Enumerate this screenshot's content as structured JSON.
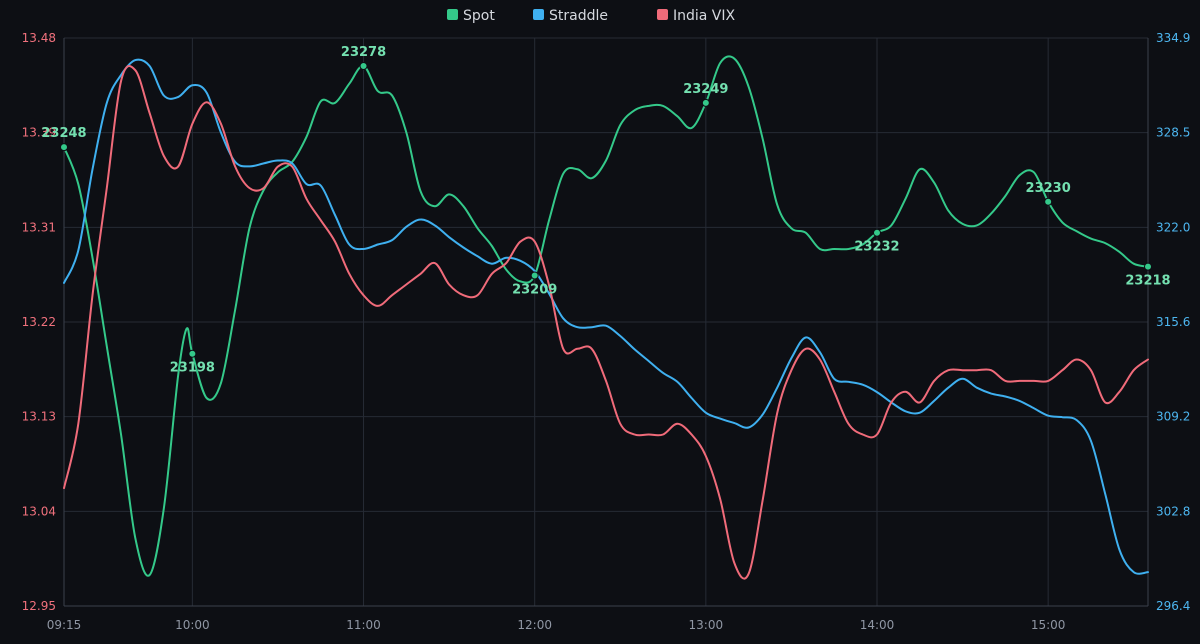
{
  "chart_data": {
    "type": "line",
    "legend": {
      "position": "top-center"
    },
    "grid": true,
    "colors": {
      "spot": "#34c98a",
      "straddle": "#3fb0f0",
      "vix": "#f06b7a",
      "background": "#0d0f14",
      "grid": "#262b35"
    },
    "x_ticks": [
      "09:15",
      "10:00",
      "11:00",
      "12:00",
      "13:00",
      "14:00",
      "15:00"
    ],
    "x_range": [
      "09:15",
      "15:35"
    ],
    "y_left": {
      "range": [
        12.95,
        13.48
      ],
      "ticks": [
        "12.95",
        "13.04",
        "13.13",
        "13.22",
        "13.31",
        "13.39",
        "13.48"
      ]
    },
    "y_right": {
      "range": [
        296.4,
        334.9
      ],
      "ticks": [
        "296.4",
        "302.8",
        "309.2",
        "315.6",
        "322.0",
        "328.5",
        "334.9"
      ]
    },
    "series": [
      {
        "name": "Spot",
        "axis": "right",
        "color": "#34c98a",
        "points": [
          [
            "09:15",
            327.5
          ],
          [
            "09:20",
            325.0
          ],
          [
            "09:25",
            320.0
          ],
          [
            "09:30",
            314.0
          ],
          [
            "09:35",
            308.0
          ],
          [
            "09:40",
            301.0
          ],
          [
            "09:45",
            298.5
          ],
          [
            "09:50",
            303.0
          ],
          [
            "09:55",
            312.0
          ],
          [
            "09:58",
            315.2
          ],
          [
            "10:00",
            313.5
          ],
          [
            "10:05",
            310.5
          ],
          [
            "10:10",
            311.5
          ],
          [
            "10:15",
            316.5
          ],
          [
            "10:20",
            322.0
          ],
          [
            "10:25",
            324.6
          ],
          [
            "10:30",
            325.8
          ],
          [
            "10:35",
            326.5
          ],
          [
            "10:40",
            328.2
          ],
          [
            "10:45",
            330.6
          ],
          [
            "10:50",
            330.5
          ],
          [
            "10:55",
            331.8
          ],
          [
            "11:00",
            333.0
          ],
          [
            "11:05",
            331.3
          ],
          [
            "11:10",
            331.0
          ],
          [
            "11:15",
            328.5
          ],
          [
            "11:20",
            324.5
          ],
          [
            "11:25",
            323.5
          ],
          [
            "11:30",
            324.3
          ],
          [
            "11:35",
            323.5
          ],
          [
            "11:40",
            322.0
          ],
          [
            "11:45",
            320.8
          ],
          [
            "11:50",
            319.2
          ],
          [
            "11:55",
            318.4
          ],
          [
            "12:00",
            318.8
          ],
          [
            "12:05",
            322.5
          ],
          [
            "12:10",
            325.7
          ],
          [
            "12:15",
            326.0
          ],
          [
            "12:20",
            325.4
          ],
          [
            "12:25",
            326.6
          ],
          [
            "12:30",
            329.0
          ],
          [
            "12:35",
            330.0
          ],
          [
            "12:40",
            330.3
          ],
          [
            "12:45",
            330.3
          ],
          [
            "12:50",
            329.6
          ],
          [
            "12:55",
            328.8
          ],
          [
            "13:00",
            330.5
          ],
          [
            "13:05",
            333.2
          ],
          [
            "13:10",
            333.5
          ],
          [
            "13:15",
            331.6
          ],
          [
            "13:20",
            328.0
          ],
          [
            "13:25",
            323.6
          ],
          [
            "13:30",
            322.0
          ],
          [
            "13:35",
            321.7
          ],
          [
            "13:40",
            320.6
          ],
          [
            "13:45",
            320.6
          ],
          [
            "13:50",
            320.6
          ],
          [
            "13:55",
            320.9
          ],
          [
            "14:00",
            321.7
          ],
          [
            "14:05",
            322.2
          ],
          [
            "14:10",
            324.0
          ],
          [
            "14:15",
            326.0
          ],
          [
            "14:20",
            325.1
          ],
          [
            "14:25",
            323.2
          ],
          [
            "14:30",
            322.3
          ],
          [
            "14:35",
            322.2
          ],
          [
            "14:40",
            323.0
          ],
          [
            "14:45",
            324.2
          ],
          [
            "14:50",
            325.6
          ],
          [
            "14:55",
            325.8
          ],
          [
            "15:00",
            323.8
          ],
          [
            "15:05",
            322.4
          ],
          [
            "15:10",
            321.8
          ],
          [
            "15:15",
            321.3
          ],
          [
            "15:20",
            321.0
          ],
          [
            "15:25",
            320.4
          ],
          [
            "15:30",
            319.6
          ],
          [
            "15:35",
            319.4
          ]
        ],
        "labels": [
          {
            "x": "09:15",
            "text": "23248",
            "pos": "above"
          },
          {
            "x": "10:00",
            "text": "23198",
            "pos": "below"
          },
          {
            "x": "11:00",
            "text": "23278",
            "pos": "above"
          },
          {
            "x": "12:00",
            "text": "23209",
            "pos": "below"
          },
          {
            "x": "13:00",
            "text": "23249",
            "pos": "above"
          },
          {
            "x": "14:00",
            "text": "23232",
            "pos": "below"
          },
          {
            "x": "15:00",
            "text": "23230",
            "pos": "above"
          },
          {
            "x": "15:35",
            "text": "23218",
            "pos": "below"
          }
        ]
      },
      {
        "name": "Straddle",
        "axis": "right",
        "color": "#3fb0f0",
        "points": [
          [
            "09:15",
            318.3
          ],
          [
            "09:20",
            320.5
          ],
          [
            "09:25",
            326.0
          ],
          [
            "09:30",
            330.5
          ],
          [
            "09:35",
            332.4
          ],
          [
            "09:40",
            333.4
          ],
          [
            "09:45",
            333.0
          ],
          [
            "09:50",
            331.0
          ],
          [
            "09:55",
            330.9
          ],
          [
            "10:00",
            331.7
          ],
          [
            "10:05",
            331.2
          ],
          [
            "10:10",
            328.5
          ],
          [
            "10:15",
            326.5
          ],
          [
            "10:20",
            326.2
          ],
          [
            "10:25",
            326.4
          ],
          [
            "10:30",
            326.6
          ],
          [
            "10:35",
            326.4
          ],
          [
            "10:40",
            325.0
          ],
          [
            "10:45",
            324.9
          ],
          [
            "10:50",
            322.9
          ],
          [
            "10:55",
            320.9
          ],
          [
            "11:00",
            320.6
          ],
          [
            "11:05",
            320.9
          ],
          [
            "11:10",
            321.2
          ],
          [
            "11:15",
            322.1
          ],
          [
            "11:20",
            322.6
          ],
          [
            "11:25",
            322.2
          ],
          [
            "11:30",
            321.4
          ],
          [
            "11:35",
            320.7
          ],
          [
            "11:40",
            320.1
          ],
          [
            "11:45",
            319.6
          ],
          [
            "11:50",
            320.0
          ],
          [
            "11:55",
            319.8
          ],
          [
            "12:00",
            319.1
          ],
          [
            "12:05",
            317.6
          ],
          [
            "12:10",
            315.9
          ],
          [
            "12:15",
            315.3
          ],
          [
            "12:20",
            315.3
          ],
          [
            "12:25",
            315.4
          ],
          [
            "12:30",
            314.7
          ],
          [
            "12:35",
            313.8
          ],
          [
            "12:40",
            313.0
          ],
          [
            "12:45",
            312.2
          ],
          [
            "12:50",
            311.6
          ],
          [
            "12:55",
            310.5
          ],
          [
            "13:00",
            309.5
          ],
          [
            "13:05",
            309.1
          ],
          [
            "13:10",
            308.8
          ],
          [
            "13:15",
            308.5
          ],
          [
            "13:20",
            309.4
          ],
          [
            "13:25",
            311.2
          ],
          [
            "13:30",
            313.2
          ],
          [
            "13:35",
            314.6
          ],
          [
            "13:40",
            313.6
          ],
          [
            "13:45",
            311.8
          ],
          [
            "13:50",
            311.6
          ],
          [
            "13:55",
            311.4
          ],
          [
            "14:00",
            310.9
          ],
          [
            "14:05",
            310.2
          ],
          [
            "14:10",
            309.6
          ],
          [
            "14:15",
            309.5
          ],
          [
            "14:20",
            310.3
          ],
          [
            "14:25",
            311.2
          ],
          [
            "14:30",
            311.8
          ],
          [
            "14:35",
            311.2
          ],
          [
            "14:40",
            310.8
          ],
          [
            "14:45",
            310.6
          ],
          [
            "14:50",
            310.3
          ],
          [
            "14:55",
            309.8
          ],
          [
            "15:00",
            309.3
          ],
          [
            "15:05",
            309.2
          ],
          [
            "15:10",
            309.0
          ],
          [
            "15:15",
            307.6
          ],
          [
            "15:20",
            304.0
          ],
          [
            "15:25",
            300.2
          ],
          [
            "15:30",
            298.7
          ],
          [
            "15:35",
            298.7
          ]
        ]
      },
      {
        "name": "India VIX",
        "axis": "left",
        "color": "#f06b7a",
        "points": [
          [
            "09:15",
            13.06
          ],
          [
            "09:20",
            13.12
          ],
          [
            "09:25",
            13.24
          ],
          [
            "09:30",
            13.34
          ],
          [
            "09:35",
            13.44
          ],
          [
            "09:40",
            13.45
          ],
          [
            "09:45",
            13.41
          ],
          [
            "09:50",
            13.37
          ],
          [
            "09:55",
            13.36
          ],
          [
            "10:00",
            13.4
          ],
          [
            "10:05",
            13.42
          ],
          [
            "10:10",
            13.4
          ],
          [
            "10:15",
            13.36
          ],
          [
            "10:20",
            13.34
          ],
          [
            "10:25",
            13.34
          ],
          [
            "10:30",
            13.36
          ],
          [
            "10:35",
            13.36
          ],
          [
            "10:40",
            13.33
          ],
          [
            "10:45",
            13.31
          ],
          [
            "10:50",
            13.29
          ],
          [
            "10:55",
            13.26
          ],
          [
            "11:00",
            13.24
          ],
          [
            "11:05",
            13.23
          ],
          [
            "11:10",
            13.24
          ],
          [
            "11:15",
            13.25
          ],
          [
            "11:20",
            13.26
          ],
          [
            "11:25",
            13.27
          ],
          [
            "11:30",
            13.25
          ],
          [
            "11:35",
            13.24
          ],
          [
            "11:40",
            13.24
          ],
          [
            "11:45",
            13.26
          ],
          [
            "11:50",
            13.27
          ],
          [
            "11:55",
            13.29
          ],
          [
            "12:00",
            13.29
          ],
          [
            "12:05",
            13.25
          ],
          [
            "12:10",
            13.19
          ],
          [
            "12:15",
            13.19
          ],
          [
            "12:20",
            13.19
          ],
          [
            "12:25",
            13.16
          ],
          [
            "12:30",
            13.12
          ],
          [
            "12:35",
            13.11
          ],
          [
            "12:40",
            13.11
          ],
          [
            "12:45",
            13.11
          ],
          [
            "12:50",
            13.12
          ],
          [
            "12:55",
            13.11
          ],
          [
            "13:00",
            13.09
          ],
          [
            "13:05",
            13.05
          ],
          [
            "13:10",
            12.99
          ],
          [
            "13:15",
            12.98
          ],
          [
            "13:20",
            13.05
          ],
          [
            "13:25",
            13.13
          ],
          [
            "13:30",
            13.17
          ],
          [
            "13:35",
            13.19
          ],
          [
            "13:40",
            13.18
          ],
          [
            "13:45",
            13.15
          ],
          [
            "13:50",
            13.12
          ],
          [
            "13:55",
            13.11
          ],
          [
            "14:00",
            13.11
          ],
          [
            "14:05",
            13.14
          ],
          [
            "14:10",
            13.15
          ],
          [
            "14:15",
            13.14
          ],
          [
            "14:20",
            13.16
          ],
          [
            "14:25",
            13.17
          ],
          [
            "14:30",
            13.17
          ],
          [
            "14:35",
            13.17
          ],
          [
            "14:40",
            13.17
          ],
          [
            "14:45",
            13.16
          ],
          [
            "14:50",
            13.16
          ],
          [
            "14:55",
            13.16
          ],
          [
            "15:00",
            13.16
          ],
          [
            "15:05",
            13.17
          ],
          [
            "15:10",
            13.18
          ],
          [
            "15:15",
            13.17
          ],
          [
            "15:20",
            13.14
          ],
          [
            "15:25",
            13.15
          ],
          [
            "15:30",
            13.17
          ],
          [
            "15:35",
            13.18
          ]
        ]
      }
    ]
  }
}
